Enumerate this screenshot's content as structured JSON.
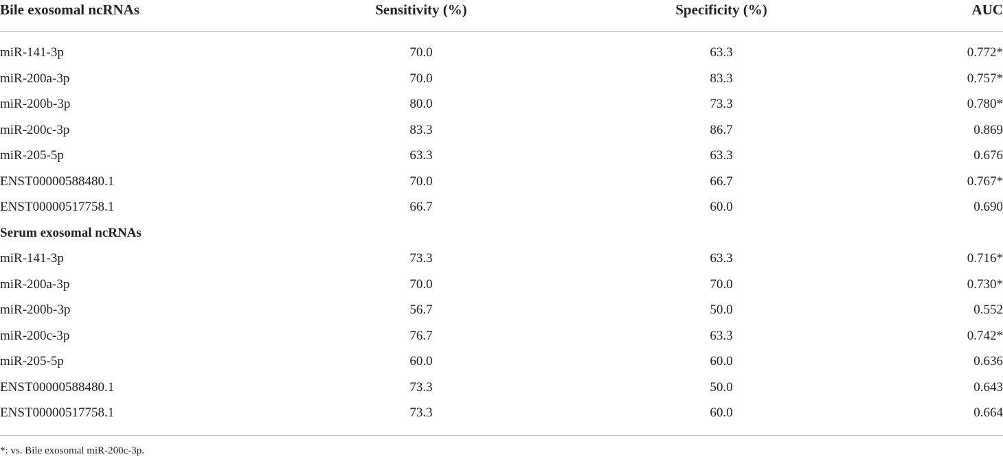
{
  "table": {
    "columns": [
      "Bile exosomal ncRNAs",
      "Sensitivity (%)",
      "Specificity (%)",
      "AUC"
    ],
    "groups": [
      {
        "rows": [
          [
            "miR-141-3p",
            "70.0",
            "63.3",
            "0.772*"
          ],
          [
            "miR-200a-3p",
            "70.0",
            "83.3",
            "0.757*"
          ],
          [
            "miR-200b-3p",
            "80.0",
            "73.3",
            "0.780*"
          ],
          [
            "miR-200c-3p",
            "83.3",
            "86.7",
            "0.869"
          ],
          [
            "miR-205-5p",
            "63.3",
            "63.3",
            "0.676"
          ],
          [
            "ENST00000588480.1",
            "70.0",
            "66.7",
            "0.767*"
          ],
          [
            "ENST00000517758.1",
            "66.7",
            "60.0",
            "0.690"
          ]
        ]
      },
      {
        "title": "Serum exosomal ncRNAs",
        "rows": [
          [
            "miR-141-3p",
            "73.3",
            "63.3",
            "0.716*"
          ],
          [
            "miR-200a-3p",
            "70.0",
            "70.0",
            "0.730*"
          ],
          [
            "miR-200b-3p",
            "56.7",
            "50.0",
            "0.552"
          ],
          [
            "miR-200c-3p",
            "76.7",
            "63.3",
            "0.742*"
          ],
          [
            "miR-205-5p",
            "60.0",
            "60.0",
            "0.636"
          ],
          [
            "ENST00000588480.1",
            "73.3",
            "50.0",
            "0.643"
          ],
          [
            "ENST00000517758.1",
            "73.3",
            "60.0",
            "0.664"
          ]
        ]
      }
    ],
    "footnote": "*: vs. Bile exosomal miR-200c-3p."
  }
}
